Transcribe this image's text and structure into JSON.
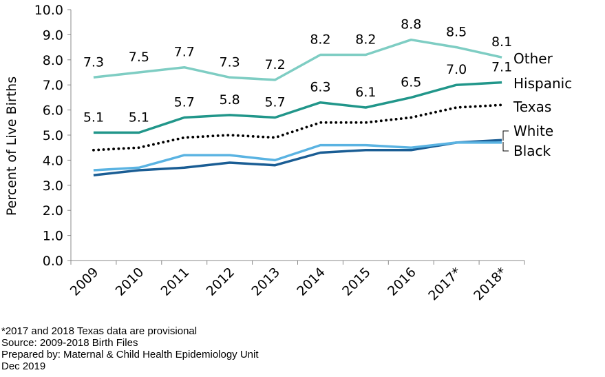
{
  "chart_data": {
    "type": "line",
    "categories": [
      "2009",
      "2010",
      "2011",
      "2012",
      "2013",
      "2014",
      "2015",
      "2016",
      "2017*",
      "2018*"
    ],
    "ylabel": "Percent of Live Births",
    "ylim": [
      0,
      10
    ],
    "yticks": [
      "0.0",
      "1.0",
      "2.0",
      "3.0",
      "4.0",
      "5.0",
      "6.0",
      "7.0",
      "8.0",
      "9.0",
      "10.0"
    ],
    "grid": false,
    "series": [
      {
        "name": "Other",
        "values": [
          7.3,
          7.5,
          7.7,
          7.3,
          7.2,
          8.2,
          8.2,
          8.8,
          8.5,
          8.1
        ],
        "color": "#7ecdc3",
        "style": "solid",
        "labeled": true
      },
      {
        "name": "Hispanic",
        "values": [
          5.1,
          5.1,
          5.7,
          5.8,
          5.7,
          6.3,
          6.1,
          6.5,
          7.0,
          7.1
        ],
        "color": "#21968a",
        "style": "solid",
        "labeled": true
      },
      {
        "name": "Texas",
        "values": [
          4.4,
          4.5,
          4.9,
          5.0,
          4.9,
          5.5,
          5.5,
          5.7,
          6.1,
          6.2
        ],
        "color": "#000000",
        "style": "dotted",
        "labeled": false
      },
      {
        "name": "White",
        "values": [
          3.4,
          3.6,
          3.7,
          3.9,
          3.8,
          4.3,
          4.4,
          4.4,
          4.7,
          4.8
        ],
        "color": "#1a5d94",
        "style": "solid",
        "labeled": false
      },
      {
        "name": "Black",
        "values": [
          3.6,
          3.7,
          4.2,
          4.2,
          4.0,
          4.6,
          4.6,
          4.5,
          4.7,
          4.7
        ],
        "color": "#5ab3e2",
        "style": "solid",
        "labeled": false
      }
    ]
  },
  "footnotes": {
    "provisional": "*2017 and 2018 Texas data are provisional",
    "source": "Source: 2009-2018 Birth Files",
    "prepared_by": "Prepared by: Maternal & Child Health Epidemiology Unit",
    "date": "Dec 2019"
  }
}
